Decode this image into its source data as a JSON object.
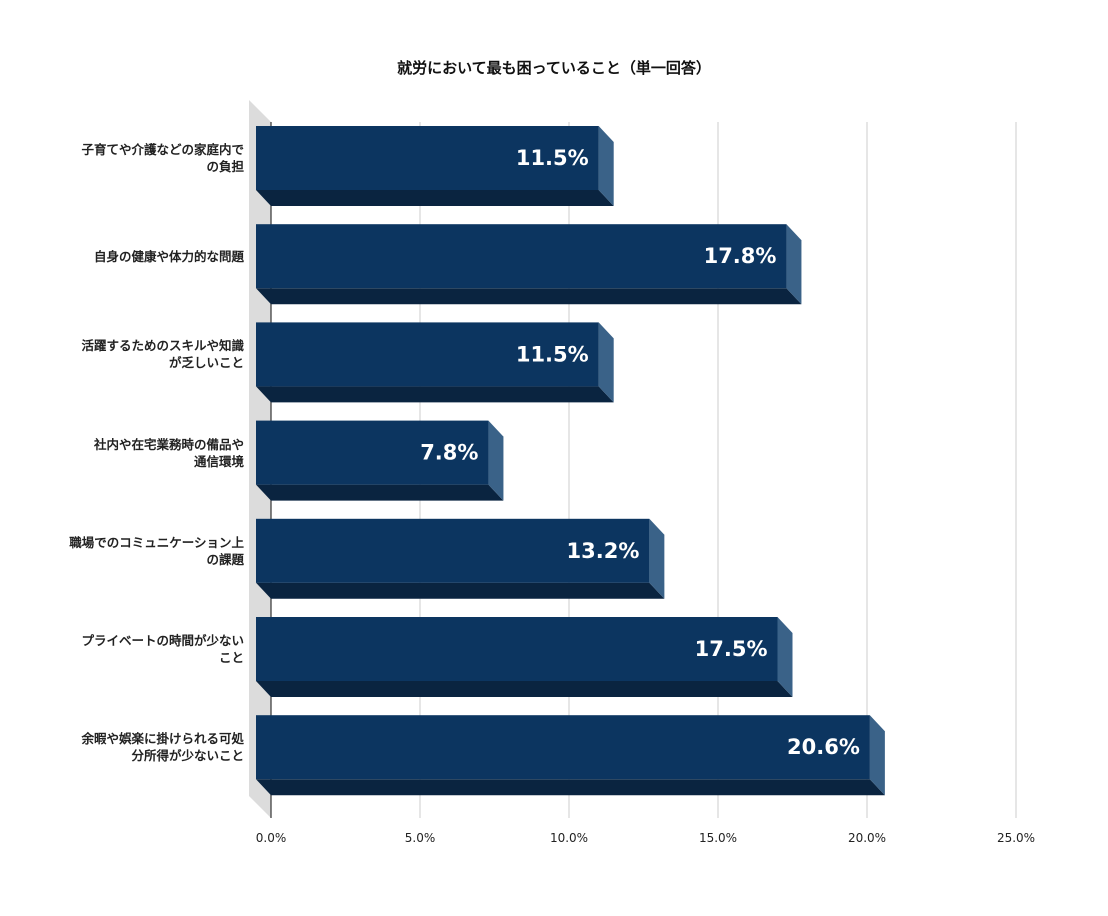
{
  "chart_data": {
    "type": "bar",
    "orientation": "horizontal",
    "title": "就労において最も困っていること（単一回答）",
    "categories": [
      "子育てや介護などの家庭内での負担",
      "自身の健康や体力的な問題",
      "活躍するためのスキルや知識が乏しいこと",
      "社内や在宅業務時の備品や通信環境",
      "職場でのコミュニケーション上の課題",
      "プライベートの時間が少ないこと",
      "余暇や娯楽に掛けられる可処分所得が少ないこと"
    ],
    "category_label_lines": [
      [
        "子育てや介護などの家庭内で",
        "の負担"
      ],
      [
        "自身の健康や体力的な問題"
      ],
      [
        "活躍するためのスキルや知識",
        "が乏しいこと"
      ],
      [
        "社内や在宅業務時の備品や",
        "通信環境"
      ],
      [
        "職場でのコミュニケーション上",
        "の課題"
      ],
      [
        "プライベートの時間が少ない",
        "こと"
      ],
      [
        "余暇や娯楽に掛けられる可処",
        "分所得が少ないこと"
      ]
    ],
    "values": [
      11.5,
      17.8,
      11.5,
      7.8,
      13.2,
      17.5,
      20.6
    ],
    "data_labels": [
      "11.5%",
      "17.8%",
      "11.5%",
      "7.8%",
      "13.2%",
      "17.5%",
      "20.6%"
    ],
    "x_ticks": [
      0,
      5,
      10,
      15,
      20,
      25
    ],
    "x_tick_labels": [
      "0.0%",
      "5.0%",
      "10.0%",
      "15.0%",
      "20.0%",
      "25.0%"
    ],
    "xlim": [
      0,
      25
    ],
    "xlabel": "",
    "ylabel": "",
    "grid": true,
    "legend": "none",
    "style": "3d",
    "colors": {
      "bar_front": "#0c3560",
      "bar_side": "#3a6288",
      "bar_bottom": "#0a2440",
      "floor": "#dcdcdc",
      "gridline": "#cccccc",
      "label_text": "#ffffff"
    }
  }
}
